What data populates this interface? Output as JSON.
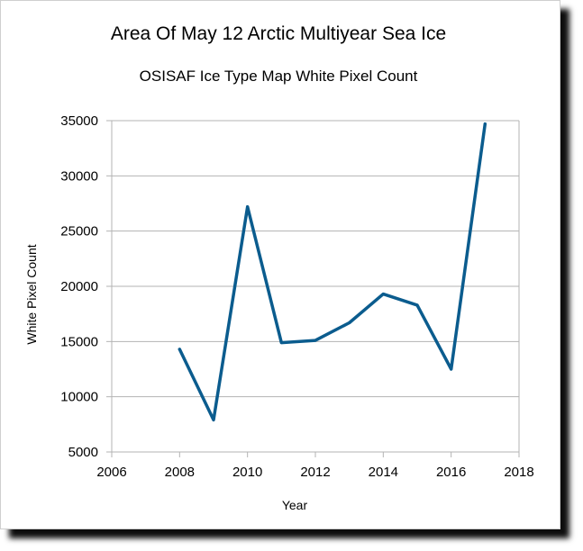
{
  "chart_data": {
    "type": "line",
    "title": "Area Of May 12 Arctic Multiyear Sea Ice",
    "subtitle": "OSISAF Ice Type Map White Pixel Count",
    "xlabel": "Year",
    "ylabel": "White Pixel Count",
    "xlim": [
      2006,
      2018
    ],
    "ylim": [
      5000,
      35000
    ],
    "x_ticks": [
      2006,
      2008,
      2010,
      2012,
      2014,
      2016,
      2018
    ],
    "y_ticks": [
      5000,
      10000,
      15000,
      20000,
      25000,
      30000,
      35000
    ],
    "grid": true,
    "legend": "none",
    "series_color": "#0b5c8e",
    "x": [
      2008,
      2009,
      2010,
      2011,
      2012,
      2013,
      2014,
      2015,
      2016,
      2017
    ],
    "y": [
      14300,
      7900,
      27200,
      14900,
      15100,
      16700,
      19300,
      18300,
      12500,
      34700
    ]
  }
}
